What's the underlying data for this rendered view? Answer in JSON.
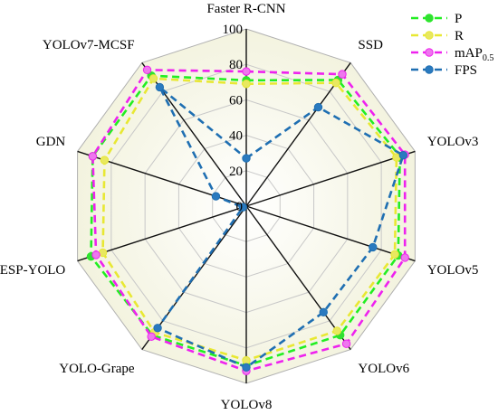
{
  "chart_data": {
    "type": "radar",
    "categories": [
      "Faster R-CNN",
      "SSD",
      "YOLOv3",
      "YOLOv5",
      "YOLOv6",
      "YOLOv8",
      "YOLO-Grape",
      "ESP-YOLO",
      "GDN",
      "YOLOv7-MCSF"
    ],
    "radial_ticks": [
      0,
      20,
      40,
      60,
      80,
      100
    ],
    "rlim": [
      0,
      100
    ],
    "grid": true,
    "legend_position": "top-right",
    "series": [
      {
        "name": "P",
        "color": "#22ee22",
        "marker_color": "#33dd33",
        "values": [
          71,
          88,
          91,
          90,
          90,
          90,
          90,
          92,
          91,
          91
        ]
      },
      {
        "name": "R",
        "color": "#e8e833",
        "marker_color": "#e8e860",
        "values": [
          69,
          86,
          89,
          88,
          87,
          87,
          88,
          85,
          84,
          89
        ]
      },
      {
        "name": "mAP",
        "name_sub": "0.5",
        "color": "#ee22ee",
        "marker_color": "#ee77ee",
        "values": [
          76,
          92,
          94,
          94,
          96,
          93,
          91,
          89,
          91,
          95
        ]
      },
      {
        "name": "FPS",
        "color": "#1f6fb2",
        "marker_color": "#2a7abf",
        "values": [
          27,
          69,
          93,
          75,
          74,
          91,
          85,
          2,
          18,
          83
        ]
      }
    ]
  }
}
